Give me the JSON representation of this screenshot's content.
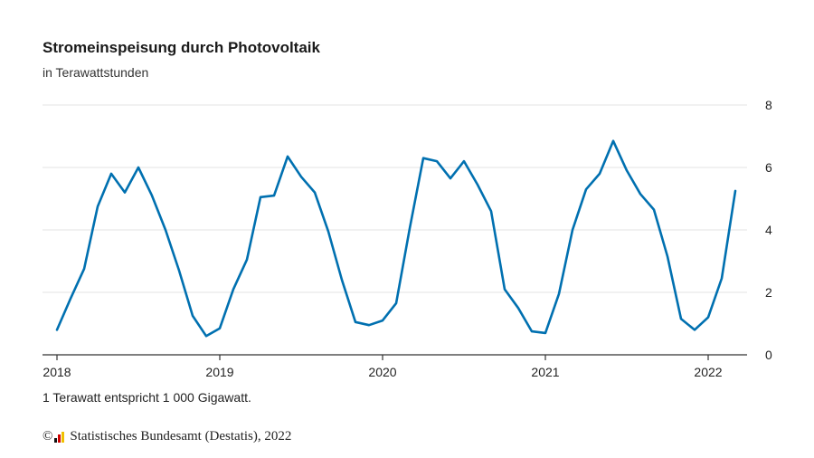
{
  "title": "Stromeinspeisung durch Photovoltaik",
  "subtitle": "in Terawattstunden",
  "note": "1 Terawatt entspricht 1 000 Gigawatt.",
  "source": {
    "copyright": "©",
    "text": "Statistisches Bundesamt (Destatis), 2022"
  },
  "colors": {
    "line": "#0070b0",
    "grid": "#e3e3e3",
    "axis": "#333333"
  },
  "chart_data": {
    "type": "line",
    "x_ticks": [
      "2018",
      "2019",
      "2020",
      "2021",
      "2022"
    ],
    "y_ticks": [
      "0",
      "2",
      "4",
      "6",
      "8"
    ],
    "ylim": [
      0,
      8
    ],
    "y_axis_position": "right",
    "grid": "horizontal",
    "series": [
      {
        "x": [
          "2018-01",
          "2018-02",
          "2018-03",
          "2018-04",
          "2018-05",
          "2018-06",
          "2018-07",
          "2018-08",
          "2018-09",
          "2018-10",
          "2018-11",
          "2018-12",
          "2019-01",
          "2019-02",
          "2019-03",
          "2019-04",
          "2019-05",
          "2019-06",
          "2019-07",
          "2019-08",
          "2019-09",
          "2019-10",
          "2019-11",
          "2019-12",
          "2020-01",
          "2020-02",
          "2020-03",
          "2020-04",
          "2020-05",
          "2020-06",
          "2020-07",
          "2020-08",
          "2020-09",
          "2020-10",
          "2020-11",
          "2020-12",
          "2021-01",
          "2021-02",
          "2021-03",
          "2021-04",
          "2021-05",
          "2021-06",
          "2021-07",
          "2021-08",
          "2021-09",
          "2021-10",
          "2021-11",
          "2021-12",
          "2022-01",
          "2022-02",
          "2022-03"
        ],
        "values": [
          0.8,
          1.8,
          2.75,
          4.75,
          5.8,
          5.2,
          6.0,
          5.1,
          4.0,
          2.7,
          1.25,
          0.6,
          0.85,
          2.1,
          3.05,
          5.05,
          5.1,
          6.35,
          5.7,
          5.2,
          3.95,
          2.4,
          1.05,
          0.95,
          1.1,
          1.65,
          4.05,
          6.3,
          6.2,
          5.65,
          6.2,
          5.45,
          4.6,
          2.1,
          1.5,
          0.75,
          0.7,
          1.95,
          4.0,
          5.3,
          5.8,
          6.85,
          5.9,
          5.15,
          4.65,
          3.15,
          1.15,
          0.8,
          1.2,
          2.45,
          5.25
        ]
      }
    ]
  }
}
